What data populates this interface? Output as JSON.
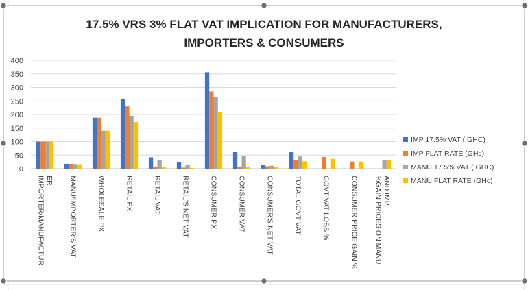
{
  "chart_data": {
    "type": "bar",
    "title_lines": [
      "17.5% VRS 3% FLAT VAT IMPLICATION FOR MANUFACTURERS,",
      "IMPORTERS & CONSUMERS"
    ],
    "categories": [
      [
        "IMPORTER/MANUFACTUR",
        "ER"
      ],
      [
        "MANU/IMPORTER'S VAT"
      ],
      [
        "WHOLESALE PX"
      ],
      [
        "RETAIL PX"
      ],
      [
        "RETAIL VAT"
      ],
      [
        "RETAIL'S NET VAT"
      ],
      [
        "CONSUMER PX"
      ],
      [
        "CONSUMER VAT"
      ],
      [
        "CONSUMER'S NET VAT"
      ],
      [
        "TOTAL GOVT VAT"
      ],
      [
        "GOVT VAT LOSS %"
      ],
      [
        "CONSUMER PRICE GAIN %"
      ],
      [
        "%GAIN PRICES ON MANU",
        "AND IMP"
      ]
    ],
    "series": [
      {
        "name": "IMP 17.5% VAT ( GHC)",
        "color": "#4472C4",
        "values": [
          100,
          18,
          188,
          258,
          42,
          25,
          356,
          62,
          15,
          62,
          0,
          0,
          0
        ]
      },
      {
        "name": "IMP FLAT RATE (GHc)",
        "color": "#ED7D31",
        "values": [
          100,
          18,
          188,
          230,
          6,
          4,
          285,
          8,
          9,
          33,
          43,
          26,
          0
        ]
      },
      {
        "name": "MANU 17.5% VAT ( GHC)",
        "color": "#A5A5A5",
        "values": [
          100,
          17,
          140,
          195,
          32,
          15,
          265,
          46,
          11,
          45,
          0,
          0,
          33
        ]
      },
      {
        "name": "MANU FLAT RATE (GHc)",
        "color": "#FFC000",
        "values": [
          100,
          16,
          140,
          172,
          5,
          3,
          210,
          7,
          6,
          27,
          36,
          26,
          33
        ]
      }
    ],
    "yticks": [
      0,
      50,
      100,
      150,
      200,
      250,
      300,
      350,
      400
    ],
    "ylim": [
      0,
      400
    ],
    "grid": true,
    "legend_position": "right"
  }
}
